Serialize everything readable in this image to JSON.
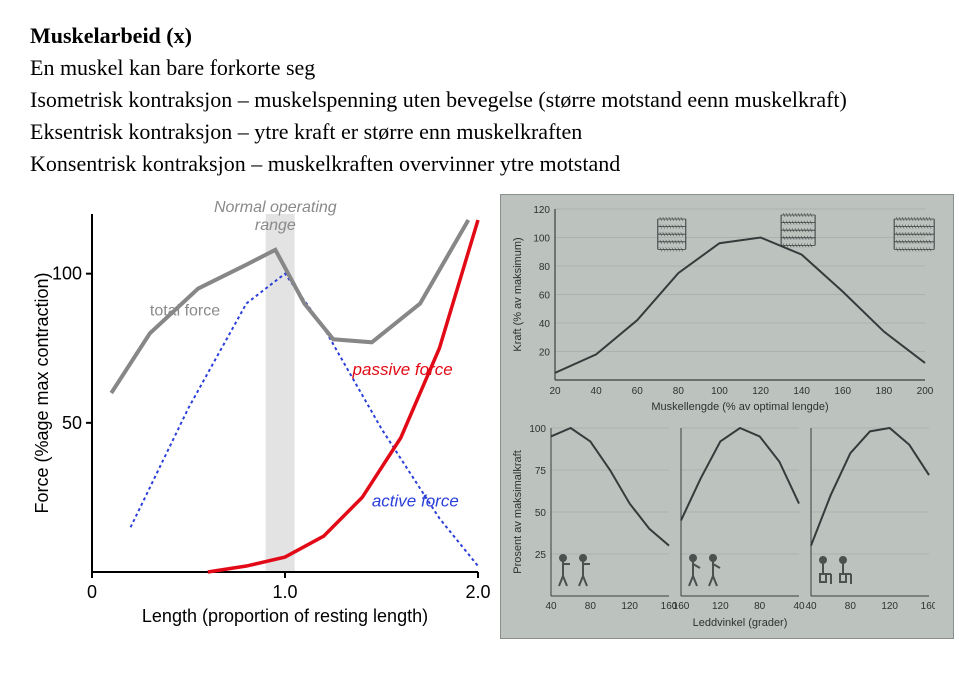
{
  "text": {
    "title": "Muskelarbeid (x)",
    "line1": "En muskel kan bare forkorte seg",
    "line2": "Isometrisk kontraksjon – muskelspenning uten bevegelse (større motstand eenn muskelkraft)",
    "line3": "Eksentrisk kontraksjon – ytre kraft er større enn muskelkraften",
    "line4": "Konsentrisk kontraksjon – muskelkraften overvinner ytre motstand"
  },
  "leftChart": {
    "type": "line",
    "labels": {
      "yAxis": "Force (%age max contraction)",
      "xAxis": "Length (proportion of resting length)",
      "normalRange1": "Normal operating",
      "normalRange2": "range",
      "totalForce": "total force",
      "passiveForce": "passive force",
      "activeForce": "active force"
    },
    "yTicks": [
      50,
      100
    ],
    "xTicks": [
      0,
      "1.0",
      "2.0"
    ],
    "colors": {
      "total": "#878787",
      "passive": "#e20a16",
      "active": "#2b3fd9",
      "band": "#e3e3e3",
      "axis": "#000000",
      "bg": "#ffffff",
      "labelGray": "#8a8a8a"
    },
    "bandX": [
      0.9,
      1.05
    ],
    "series": {
      "total": {
        "x": [
          0.1,
          0.3,
          0.55,
          0.8,
          0.95,
          1.0,
          1.1,
          1.25,
          1.45,
          1.7,
          1.95
        ],
        "y": [
          60,
          80,
          95,
          103,
          108,
          102,
          90,
          78,
          77,
          90,
          118
        ]
      },
      "passive": {
        "x": [
          0.6,
          0.8,
          1.0,
          1.2,
          1.4,
          1.6,
          1.8,
          2.0
        ],
        "y": [
          0,
          2,
          5,
          12,
          25,
          45,
          75,
          118
        ]
      },
      "active": {
        "x": [
          0.2,
          0.5,
          0.8,
          1.0,
          1.2,
          1.5,
          1.8,
          2.0
        ],
        "y": [
          15,
          55,
          90,
          100,
          82,
          48,
          18,
          2
        ],
        "dash": "3 3"
      }
    }
  },
  "rightTop": {
    "type": "line",
    "xlabel": "Muskellengde (% av optimal lengde)",
    "ylabel": "Kraft (% av maksimum)",
    "xTicks": [
      20,
      40,
      60,
      80,
      100,
      120,
      140,
      160,
      180,
      200
    ],
    "yTicks": [
      20,
      40,
      60,
      80,
      100,
      120
    ],
    "xlim": [
      20,
      200
    ],
    "ylim": [
      0,
      120
    ],
    "colors": {
      "line": "#353b3b",
      "grid": "#9aa19d",
      "axis": "#3a3f3d",
      "bg": "#bcc3bf",
      "text": "#2d312f"
    },
    "curve": {
      "x": [
        20,
        40,
        60,
        80,
        100,
        120,
        140,
        160,
        180,
        200
      ],
      "y": [
        5,
        18,
        42,
        75,
        96,
        100,
        88,
        62,
        34,
        12
      ]
    },
    "sarcomereIcons": 3
  },
  "rightBottom": {
    "type": "small-multiples",
    "ylabel": "Prosent av maksimalkraft",
    "xlabel": "Leddvinkel (grader)",
    "yTicks": [
      25,
      50,
      75,
      100
    ],
    "colors": {
      "line": "#353b3b",
      "grid": "#9aa19d",
      "axis": "#3a3f3d",
      "bg": "#bcc3bf",
      "text": "#2d312f",
      "figure": "#4a5250"
    },
    "panels": [
      {
        "xTicks": [
          40,
          80,
          120,
          160
        ],
        "xlim": [
          40,
          160
        ],
        "curve": {
          "x": [
            40,
            60,
            80,
            100,
            120,
            140,
            160
          ],
          "y": [
            95,
            100,
            92,
            75,
            55,
            40,
            30
          ]
        },
        "icon": "arm-curl"
      },
      {
        "xTicks": [
          160,
          120,
          80,
          40
        ],
        "xlim": [
          40,
          160
        ],
        "reverseX": true,
        "curve": {
          "x": [
            40,
            60,
            80,
            100,
            120,
            140,
            160
          ],
          "y": [
            55,
            80,
            95,
            100,
            92,
            70,
            45
          ]
        },
        "icon": "arm-press"
      },
      {
        "xTicks": [
          40,
          80,
          120,
          160
        ],
        "xlim": [
          40,
          160
        ],
        "curve": {
          "x": [
            40,
            60,
            80,
            100,
            120,
            140,
            160
          ],
          "y": [
            30,
            60,
            85,
            98,
            100,
            90,
            72
          ]
        },
        "icon": "leg-seated"
      }
    ]
  }
}
